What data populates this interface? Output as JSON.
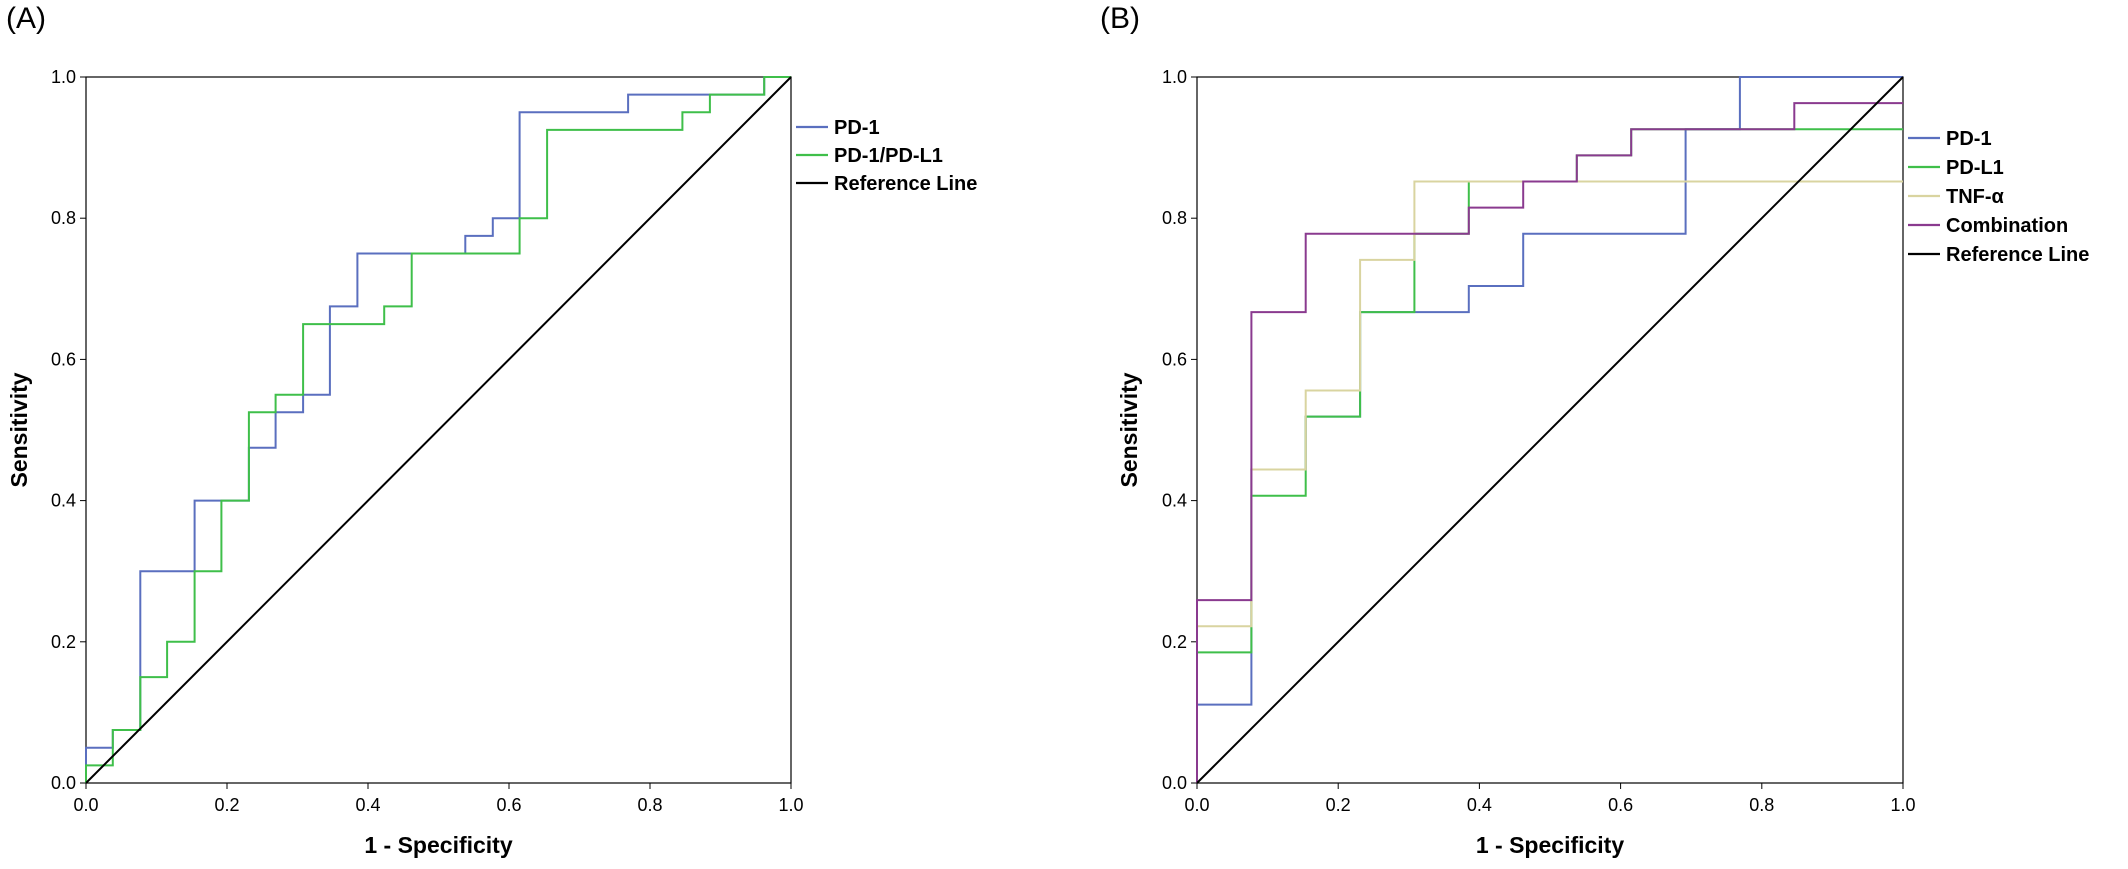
{
  "chart_data": [
    {
      "type": "line",
      "panel_label": "(A)",
      "xlabel": "1 - Specificity",
      "ylabel": "Sensitivity",
      "xlim": [
        0,
        1
      ],
      "ylim": [
        0,
        1
      ],
      "xticks": [
        "0.0",
        "0.2",
        "0.4",
        "0.6",
        "0.8",
        "1.0"
      ],
      "yticks": [
        "0.0",
        "0.2",
        "0.4",
        "0.6",
        "0.8",
        "1.0"
      ],
      "grid": false,
      "legend_position": "right",
      "series": [
        {
          "name": "PD-1",
          "color": "#5a6fbf",
          "step": true,
          "points": [
            [
              0,
              0
            ],
            [
              0,
              0.05
            ],
            [
              0.038,
              0.05
            ],
            [
              0.038,
              0.075
            ],
            [
              0.077,
              0.075
            ],
            [
              0.077,
              0.3
            ],
            [
              0.154,
              0.3
            ],
            [
              0.154,
              0.4
            ],
            [
              0.231,
              0.4
            ],
            [
              0.231,
              0.475
            ],
            [
              0.269,
              0.475
            ],
            [
              0.269,
              0.525
            ],
            [
              0.308,
              0.525
            ],
            [
              0.308,
              0.55
            ],
            [
              0.346,
              0.55
            ],
            [
              0.346,
              0.675
            ],
            [
              0.385,
              0.675
            ],
            [
              0.385,
              0.75
            ],
            [
              0.538,
              0.75
            ],
            [
              0.538,
              0.775
            ],
            [
              0.577,
              0.775
            ],
            [
              0.577,
              0.8
            ],
            [
              0.615,
              0.8
            ],
            [
              0.615,
              0.95
            ],
            [
              0.769,
              0.95
            ],
            [
              0.769,
              0.975
            ],
            [
              0.962,
              0.975
            ],
            [
              0.962,
              1.0
            ],
            [
              1.0,
              1.0
            ]
          ]
        },
        {
          "name": "PD-1/PD-L1",
          "color": "#3fbf4a",
          "step": true,
          "points": [
            [
              0,
              0
            ],
            [
              0,
              0.025
            ],
            [
              0.038,
              0.025
            ],
            [
              0.038,
              0.075
            ],
            [
              0.077,
              0.075
            ],
            [
              0.077,
              0.15
            ],
            [
              0.115,
              0.15
            ],
            [
              0.115,
              0.2
            ],
            [
              0.154,
              0.2
            ],
            [
              0.154,
              0.3
            ],
            [
              0.192,
              0.3
            ],
            [
              0.192,
              0.4
            ],
            [
              0.231,
              0.4
            ],
            [
              0.231,
              0.525
            ],
            [
              0.269,
              0.525
            ],
            [
              0.269,
              0.55
            ],
            [
              0.308,
              0.55
            ],
            [
              0.308,
              0.65
            ],
            [
              0.423,
              0.65
            ],
            [
              0.423,
              0.675
            ],
            [
              0.462,
              0.675
            ],
            [
              0.462,
              0.75
            ],
            [
              0.615,
              0.75
            ],
            [
              0.615,
              0.8
            ],
            [
              0.654,
              0.8
            ],
            [
              0.654,
              0.925
            ],
            [
              0.846,
              0.925
            ],
            [
              0.846,
              0.95
            ],
            [
              0.885,
              0.95
            ],
            [
              0.885,
              0.975
            ],
            [
              0.962,
              0.975
            ],
            [
              0.962,
              1.0
            ],
            [
              1.0,
              1.0
            ]
          ]
        },
        {
          "name": "Reference Line",
          "color": "#000000",
          "step": false,
          "points": [
            [
              0,
              0
            ],
            [
              1,
              1
            ]
          ]
        }
      ]
    },
    {
      "type": "line",
      "panel_label": "(B)",
      "xlabel": "1 - Specificity",
      "ylabel": "Sensitivity",
      "xlim": [
        0,
        1
      ],
      "ylim": [
        0,
        1
      ],
      "xticks": [
        "0.0",
        "0.2",
        "0.4",
        "0.6",
        "0.8",
        "1.0"
      ],
      "yticks": [
        "0.0",
        "0.2",
        "0.4",
        "0.6",
        "0.8",
        "1.0"
      ],
      "grid": false,
      "legend_position": "right",
      "series": [
        {
          "name": "PD-1",
          "color": "#5a6fbf",
          "step": true,
          "points": [
            [
              0,
              0
            ],
            [
              0,
              0.111
            ],
            [
              0.077,
              0.111
            ],
            [
              0.077,
              0.444
            ],
            [
              0.154,
              0.444
            ],
            [
              0.154,
              0.519
            ],
            [
              0.231,
              0.519
            ],
            [
              0.231,
              0.667
            ],
            [
              0.385,
              0.667
            ],
            [
              0.385,
              0.704
            ],
            [
              0.462,
              0.704
            ],
            [
              0.462,
              0.778
            ],
            [
              0.692,
              0.778
            ],
            [
              0.692,
              0.926
            ],
            [
              0.769,
              0.926
            ],
            [
              0.769,
              1.0
            ],
            [
              1.0,
              1.0
            ]
          ]
        },
        {
          "name": "PD-L1",
          "color": "#3fbf4a",
          "step": true,
          "points": [
            [
              0,
              0
            ],
            [
              0,
              0.185
            ],
            [
              0.077,
              0.185
            ],
            [
              0.077,
              0.407
            ],
            [
              0.154,
              0.407
            ],
            [
              0.154,
              0.519
            ],
            [
              0.231,
              0.519
            ],
            [
              0.231,
              0.667
            ],
            [
              0.308,
              0.667
            ],
            [
              0.308,
              0.778
            ],
            [
              0.385,
              0.778
            ],
            [
              0.385,
              0.852
            ],
            [
              0.538,
              0.852
            ],
            [
              0.538,
              0.889
            ],
            [
              0.615,
              0.889
            ],
            [
              0.615,
              0.926
            ],
            [
              1.0,
              0.926
            ]
          ]
        },
        {
          "name": "TNF-α",
          "color": "#d9d4a0",
          "step": true,
          "points": [
            [
              0,
              0
            ],
            [
              0,
              0.222
            ],
            [
              0.077,
              0.222
            ],
            [
              0.077,
              0.444
            ],
            [
              0.154,
              0.444
            ],
            [
              0.154,
              0.556
            ],
            [
              0.231,
              0.556
            ],
            [
              0.231,
              0.741
            ],
            [
              0.308,
              0.741
            ],
            [
              0.308,
              0.852
            ],
            [
              1.0,
              0.852
            ]
          ]
        },
        {
          "name": "Combination",
          "color": "#8a3a8f",
          "step": true,
          "points": [
            [
              0,
              0
            ],
            [
              0,
              0.259
            ],
            [
              0.077,
              0.259
            ],
            [
              0.077,
              0.667
            ],
            [
              0.154,
              0.667
            ],
            [
              0.154,
              0.778
            ],
            [
              0.385,
              0.778
            ],
            [
              0.385,
              0.815
            ],
            [
              0.462,
              0.815
            ],
            [
              0.462,
              0.852
            ],
            [
              0.538,
              0.852
            ],
            [
              0.538,
              0.889
            ],
            [
              0.615,
              0.889
            ],
            [
              0.615,
              0.926
            ],
            [
              0.846,
              0.926
            ],
            [
              0.846,
              0.963
            ],
            [
              1.0,
              0.963
            ]
          ]
        },
        {
          "name": "Reference Line",
          "color": "#000000",
          "step": false,
          "points": [
            [
              0,
              0
            ],
            [
              1,
              1
            ]
          ]
        }
      ]
    }
  ]
}
